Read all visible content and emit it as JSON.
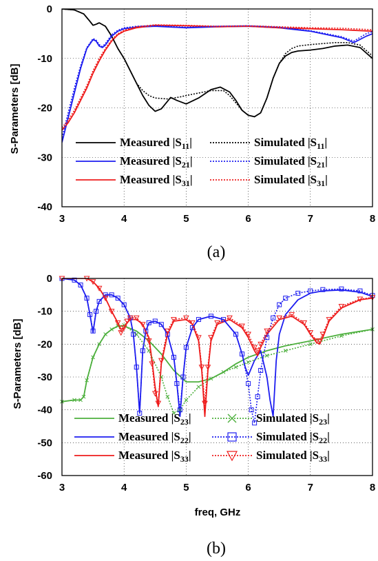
{
  "colors": {
    "black": "#000000",
    "blue": "#1c1cf0",
    "red": "#ee1c1c",
    "green": "#4caf3c"
  },
  "chart_data": [
    {
      "type": "line",
      "caption": "(a)",
      "title": "",
      "xlabel": "",
      "ylabel": "S-Parameters [dB]",
      "xlim": [
        3,
        8
      ],
      "ylim": [
        -40,
        0
      ],
      "xticks": [
        "3",
        "4",
        "5",
        "6",
        "7",
        "8"
      ],
      "yticks": [
        "0",
        "-10",
        "-20",
        "-30",
        "-40"
      ],
      "grid": true,
      "legend_position": "lower-middle",
      "series": [
        {
          "name": "Measured |S11|",
          "sub": "11",
          "label": "Measured |S",
          "color": "#000000",
          "style": "solid",
          "x": [
            3.0,
            3.2,
            3.35,
            3.45,
            3.5,
            3.55,
            3.6,
            3.7,
            3.8,
            3.9,
            4.0,
            4.1,
            4.2,
            4.3,
            4.4,
            4.5,
            4.6,
            4.75,
            4.85,
            5.0,
            5.2,
            5.4,
            5.55,
            5.7,
            5.8,
            5.9,
            6.0,
            6.1,
            6.2,
            6.3,
            6.4,
            6.5,
            6.6,
            6.7,
            6.8,
            7.0,
            7.2,
            7.4,
            7.6,
            7.8,
            8.0
          ],
          "y": [
            0,
            -0.2,
            -1.0,
            -2.5,
            -3.3,
            -3.1,
            -2.8,
            -3.5,
            -5.5,
            -8,
            -10,
            -12.5,
            -15,
            -17.5,
            -19.5,
            -20.7,
            -20.2,
            -17.9,
            -18.5,
            -19.2,
            -18,
            -16.3,
            -15.8,
            -16.8,
            -18.5,
            -20.5,
            -21.5,
            -21.8,
            -21,
            -18,
            -14,
            -11,
            -9.5,
            -8.8,
            -8.5,
            -8.3,
            -8.0,
            -7.5,
            -7.3,
            -7.8,
            -10
          ]
        },
        {
          "name": "Measured |S21|",
          "sub": "21",
          "label": "Measured |S",
          "color": "#1c1cf0",
          "style": "solid",
          "x": [
            3.0,
            3.1,
            3.2,
            3.3,
            3.4,
            3.5,
            3.55,
            3.6,
            3.65,
            3.7,
            3.8,
            3.9,
            4.0,
            4.2,
            4.5,
            5.0,
            5.5,
            6.0,
            6.5,
            7.0,
            7.5,
            7.7,
            7.9,
            8.0
          ],
          "y": [
            -27,
            -22,
            -17,
            -12,
            -8,
            -6.2,
            -6.5,
            -7.5,
            -7.8,
            -7.3,
            -5.5,
            -4.5,
            -4.0,
            -3.7,
            -3.5,
            -3.8,
            -3.6,
            -3.5,
            -3.8,
            -4.5,
            -5.8,
            -6.8,
            -5.5,
            -5.0
          ]
        },
        {
          "name": "Measured |S31|",
          "sub": "31",
          "label": "Measured |S",
          "color": "#ee1c1c",
          "style": "solid",
          "x": [
            3.0,
            3.1,
            3.2,
            3.3,
            3.4,
            3.5,
            3.6,
            3.7,
            3.8,
            3.9,
            4.0,
            4.2,
            4.5,
            5.0,
            5.5,
            6.0,
            6.5,
            7.0,
            7.5,
            8.0
          ],
          "y": [
            -24.5,
            -23,
            -21,
            -18.5,
            -16,
            -13,
            -10.5,
            -8.3,
            -6.5,
            -5.2,
            -4.5,
            -3.8,
            -3.3,
            -3.4,
            -3.6,
            -3.5,
            -3.8,
            -4.0,
            -4.2,
            -4.5
          ]
        },
        {
          "name": "Simulated |S11|",
          "sub": "11",
          "label": "Simulated |S",
          "color": "#000000",
          "style": "dotted",
          "x": [
            3.0,
            3.2,
            3.35,
            3.45,
            3.5,
            3.55,
            3.6,
            3.7,
            3.8,
            3.9,
            4.0,
            4.1,
            4.2,
            4.3,
            4.4,
            4.5,
            4.7,
            4.9,
            5.0,
            5.2,
            5.4,
            5.6,
            5.7,
            5.8,
            5.9,
            6.0,
            6.1,
            6.2,
            6.3,
            6.4,
            6.5,
            6.6,
            6.7,
            6.8,
            7.0,
            7.2,
            7.4,
            7.6,
            7.8,
            8.0
          ],
          "y": [
            0,
            -0.2,
            -1.0,
            -2.5,
            -3.3,
            -3.1,
            -2.8,
            -3.5,
            -5.5,
            -8,
            -10,
            -12.5,
            -15,
            -16.5,
            -17.5,
            -18.0,
            -18.2,
            -17.8,
            -17.5,
            -17.0,
            -16.5,
            -16.5,
            -17.5,
            -19,
            -20.5,
            -21.5,
            -21.8,
            -21,
            -18,
            -14,
            -11,
            -9,
            -8,
            -7.5,
            -7.2,
            -7.0,
            -6.8,
            -6.8,
            -7.3,
            -9.5
          ]
        },
        {
          "name": "Simulated |S21|",
          "sub": "21",
          "label": "Simulated |S",
          "color": "#1c1cf0",
          "style": "dotted",
          "x": [
            3.0,
            3.1,
            3.2,
            3.3,
            3.4,
            3.5,
            3.55,
            3.6,
            3.65,
            3.7,
            3.8,
            3.9,
            4.0,
            4.2,
            4.5,
            5.0,
            5.5,
            6.0,
            6.5,
            7.0,
            7.5,
            7.7,
            7.9,
            8.0
          ],
          "y": [
            -26,
            -21,
            -16,
            -11.5,
            -7.8,
            -6.0,
            -6.3,
            -7.2,
            -7.6,
            -7.0,
            -5.2,
            -4.3,
            -3.8,
            -3.5,
            -3.4,
            -3.7,
            -3.5,
            -3.4,
            -3.7,
            -4.4,
            -5.6,
            -6.5,
            -5.0,
            -4.6
          ]
        },
        {
          "name": "Simulated |S31|",
          "sub": "31",
          "label": "Simulated |S",
          "color": "#ee1c1c",
          "style": "dotted",
          "x": [
            3.0,
            3.1,
            3.2,
            3.3,
            3.4,
            3.5,
            3.6,
            3.7,
            3.8,
            3.9,
            4.0,
            4.2,
            4.5,
            5.0,
            5.5,
            6.0,
            6.5,
            7.0,
            7.5,
            8.0
          ],
          "y": [
            -24.0,
            -22.5,
            -20.5,
            -18,
            -15.5,
            -12.5,
            -10,
            -8.0,
            -6.2,
            -5.0,
            -4.3,
            -3.6,
            -3.2,
            -3.3,
            -3.5,
            -3.4,
            -3.6,
            -3.8,
            -3.9,
            -4.2
          ]
        }
      ]
    },
    {
      "type": "line",
      "caption": "(b)",
      "title": "",
      "xlabel": "freq, GHz",
      "ylabel": "S-Parameters [dB]",
      "xlim": [
        3,
        8
      ],
      "ylim": [
        -60,
        0
      ],
      "xticks": [
        "3",
        "4",
        "5",
        "6",
        "7",
        "8"
      ],
      "yticks": [
        "0",
        "-10",
        "-20",
        "-30",
        "-40",
        "-50",
        "-60"
      ],
      "grid": true,
      "legend_position": "bottom",
      "series": [
        {
          "name": "Measured |S23|",
          "sub": "23",
          "label": "Measured |S",
          "color": "#4caf3c",
          "style": "solid",
          "x": [
            3.0,
            3.2,
            3.3,
            3.35,
            3.4,
            3.5,
            3.6,
            3.7,
            3.8,
            3.9,
            4.0,
            4.2,
            4.4,
            4.6,
            4.8,
            5.0,
            5.2,
            5.4,
            5.6,
            5.8,
            6.0,
            6.3,
            6.6,
            7.0,
            7.5,
            8.0
          ],
          "y": [
            -37.5,
            -37,
            -37,
            -36,
            -31,
            -24,
            -20,
            -17,
            -15.5,
            -14.5,
            -14.5,
            -16,
            -19,
            -23,
            -28,
            -31.5,
            -31.5,
            -30.5,
            -28.5,
            -26,
            -24,
            -22,
            -20.5,
            -19,
            -17,
            -15.5
          ]
        },
        {
          "name": "Measured |S22|",
          "sub": "22",
          "label": "Measured |S",
          "color": "#1c1cf0",
          "style": "solid",
          "x": [
            3.0,
            3.2,
            3.3,
            3.4,
            3.45,
            3.5,
            3.55,
            3.6,
            3.7,
            3.8,
            3.9,
            4.0,
            4.1,
            4.15,
            4.2,
            4.25,
            4.3,
            4.35,
            4.4,
            4.5,
            4.6,
            4.7,
            4.8,
            4.85,
            4.9,
            4.95,
            5.0,
            5.1,
            5.2,
            5.4,
            5.6,
            5.8,
            5.9,
            5.95,
            6.0,
            6.1,
            6.2,
            6.3,
            6.35,
            6.4,
            6.45,
            6.5,
            6.6,
            6.8,
            7.0,
            7.2,
            7.5,
            7.8,
            8.0
          ],
          "y": [
            0,
            -0.5,
            -2,
            -6,
            -11,
            -16.5,
            -10,
            -7,
            -5,
            -5,
            -6,
            -8,
            -12,
            -17,
            -27,
            -41,
            -22,
            -16,
            -13.5,
            -13,
            -14,
            -17,
            -24,
            -32,
            -42,
            -30,
            -21,
            -15,
            -12.5,
            -11.5,
            -12.5,
            -17,
            -23,
            -27,
            -29.5,
            -25,
            -22,
            -30,
            -37,
            -42,
            -25,
            -17,
            -11,
            -6.5,
            -4.5,
            -3.8,
            -3.5,
            -4.2,
            -5.5
          ]
        },
        {
          "name": "Measured |S33|",
          "sub": "33",
          "label": "Measured |S",
          "color": "#ee1c1c",
          "style": "solid",
          "x": [
            3.0,
            3.4,
            3.5,
            3.6,
            3.7,
            3.8,
            3.9,
            3.95,
            4.0,
            4.05,
            4.1,
            4.2,
            4.3,
            4.4,
            4.45,
            4.5,
            4.55,
            4.6,
            4.7,
            4.8,
            5.0,
            5.1,
            5.2,
            5.25,
            5.3,
            5.35,
            5.4,
            5.5,
            5.7,
            5.9,
            6.0,
            6.1,
            6.15,
            6.2,
            6.3,
            6.5,
            6.7,
            6.9,
            7.0,
            7.1,
            7.15,
            7.2,
            7.3,
            7.5,
            7.8,
            8.0
          ],
          "y": [
            0,
            0,
            -1,
            -3,
            -6,
            -10,
            -13.5,
            -15.5,
            -15,
            -13.5,
            -12.5,
            -12.5,
            -14,
            -18,
            -25,
            -33,
            -39,
            -26,
            -17,
            -13,
            -12.5,
            -14,
            -19,
            -28,
            -42,
            -28,
            -19,
            -14,
            -12.5,
            -15,
            -18,
            -22,
            -23.5,
            -21,
            -17,
            -12.5,
            -11.5,
            -14,
            -17,
            -19.5,
            -20,
            -18,
            -13,
            -9,
            -6.5,
            -6
          ]
        },
        {
          "name": "Simulated |S23|",
          "sub": "23",
          "label": "Simulated |S",
          "color": "#4caf3c",
          "style": "dotted",
          "x": [
            3.0,
            3.2,
            3.3,
            3.35,
            3.4,
            3.5,
            3.6,
            3.7,
            3.8,
            3.9,
            4.0,
            4.2,
            4.4,
            4.6,
            4.7,
            4.8,
            4.9,
            5.0,
            5.2,
            5.4,
            5.6,
            5.8,
            6.0,
            6.3,
            6.6,
            7.0,
            7.5,
            8.0
          ],
          "y": [
            -37.5,
            -37,
            -37,
            -36,
            -31,
            -24,
            -20,
            -17,
            -15.5,
            -14.5,
            -14.2,
            -17,
            -22,
            -30,
            -36,
            -41,
            -40,
            -37,
            -33,
            -30.5,
            -28.5,
            -27,
            -25.5,
            -23.5,
            -22,
            -20,
            -17.5,
            -15.5
          ]
        },
        {
          "name": "Simulated |S22|",
          "sub": "22",
          "label": "Simulated |S",
          "color": "#1c1cf0",
          "style": "dotted",
          "x": [
            3.0,
            3.2,
            3.3,
            3.4,
            3.45,
            3.5,
            3.55,
            3.6,
            3.7,
            3.8,
            3.9,
            4.0,
            4.1,
            4.15,
            4.2,
            4.25,
            4.3,
            4.35,
            4.4,
            4.5,
            4.6,
            4.7,
            4.8,
            4.85,
            4.9,
            4.95,
            5.0,
            5.1,
            5.2,
            5.4,
            5.6,
            5.8,
            5.9,
            6.0,
            6.05,
            6.1,
            6.15,
            6.2,
            6.3,
            6.4,
            6.5,
            6.6,
            6.8,
            7.0,
            7.2,
            7.5,
            7.8,
            8.0
          ],
          "y": [
            0,
            -0.5,
            -2,
            -6,
            -11,
            -16,
            -10,
            -7,
            -5,
            -5,
            -6,
            -8,
            -12,
            -17,
            -27,
            -41,
            -22,
            -16,
            -13.5,
            -13,
            -14,
            -17,
            -24,
            -32,
            -40,
            -30,
            -21,
            -15,
            -12.5,
            -11.5,
            -12.5,
            -17,
            -23,
            -32,
            -40,
            -44,
            -36,
            -28,
            -18,
            -12,
            -8,
            -6,
            -4.5,
            -3.8,
            -3.4,
            -3.2,
            -3.8,
            -5.2
          ]
        },
        {
          "name": "Simulated |S33|",
          "sub": "33",
          "label": "Simulated |S",
          "color": "#ee1c1c",
          "style": "dotted",
          "x": [
            3.0,
            3.4,
            3.5,
            3.6,
            3.7,
            3.8,
            3.9,
            3.95,
            4.0,
            4.05,
            4.1,
            4.2,
            4.3,
            4.4,
            4.45,
            4.5,
            4.55,
            4.6,
            4.7,
            4.8,
            5.0,
            5.1,
            5.2,
            5.25,
            5.3,
            5.35,
            5.4,
            5.5,
            5.7,
            5.9,
            6.0,
            6.1,
            6.15,
            6.2,
            6.3,
            6.5,
            6.7,
            6.9,
            7.0,
            7.1,
            7.15,
            7.2,
            7.3,
            7.5,
            7.8,
            8.0
          ],
          "y": [
            0,
            0,
            -1,
            -3,
            -6,
            -10,
            -13.5,
            -16.5,
            -15,
            -13,
            -12,
            -12,
            -14,
            -19,
            -26,
            -35,
            -38,
            -25,
            -16,
            -12.5,
            -12,
            -13.5,
            -18,
            -27,
            -38,
            -27,
            -18,
            -13.5,
            -12,
            -14.5,
            -17,
            -21,
            -22,
            -20,
            -16,
            -12,
            -11,
            -13.5,
            -16.5,
            -19,
            -19,
            -17,
            -12.5,
            -8.5,
            -6.3,
            -5.8
          ]
        }
      ]
    }
  ]
}
